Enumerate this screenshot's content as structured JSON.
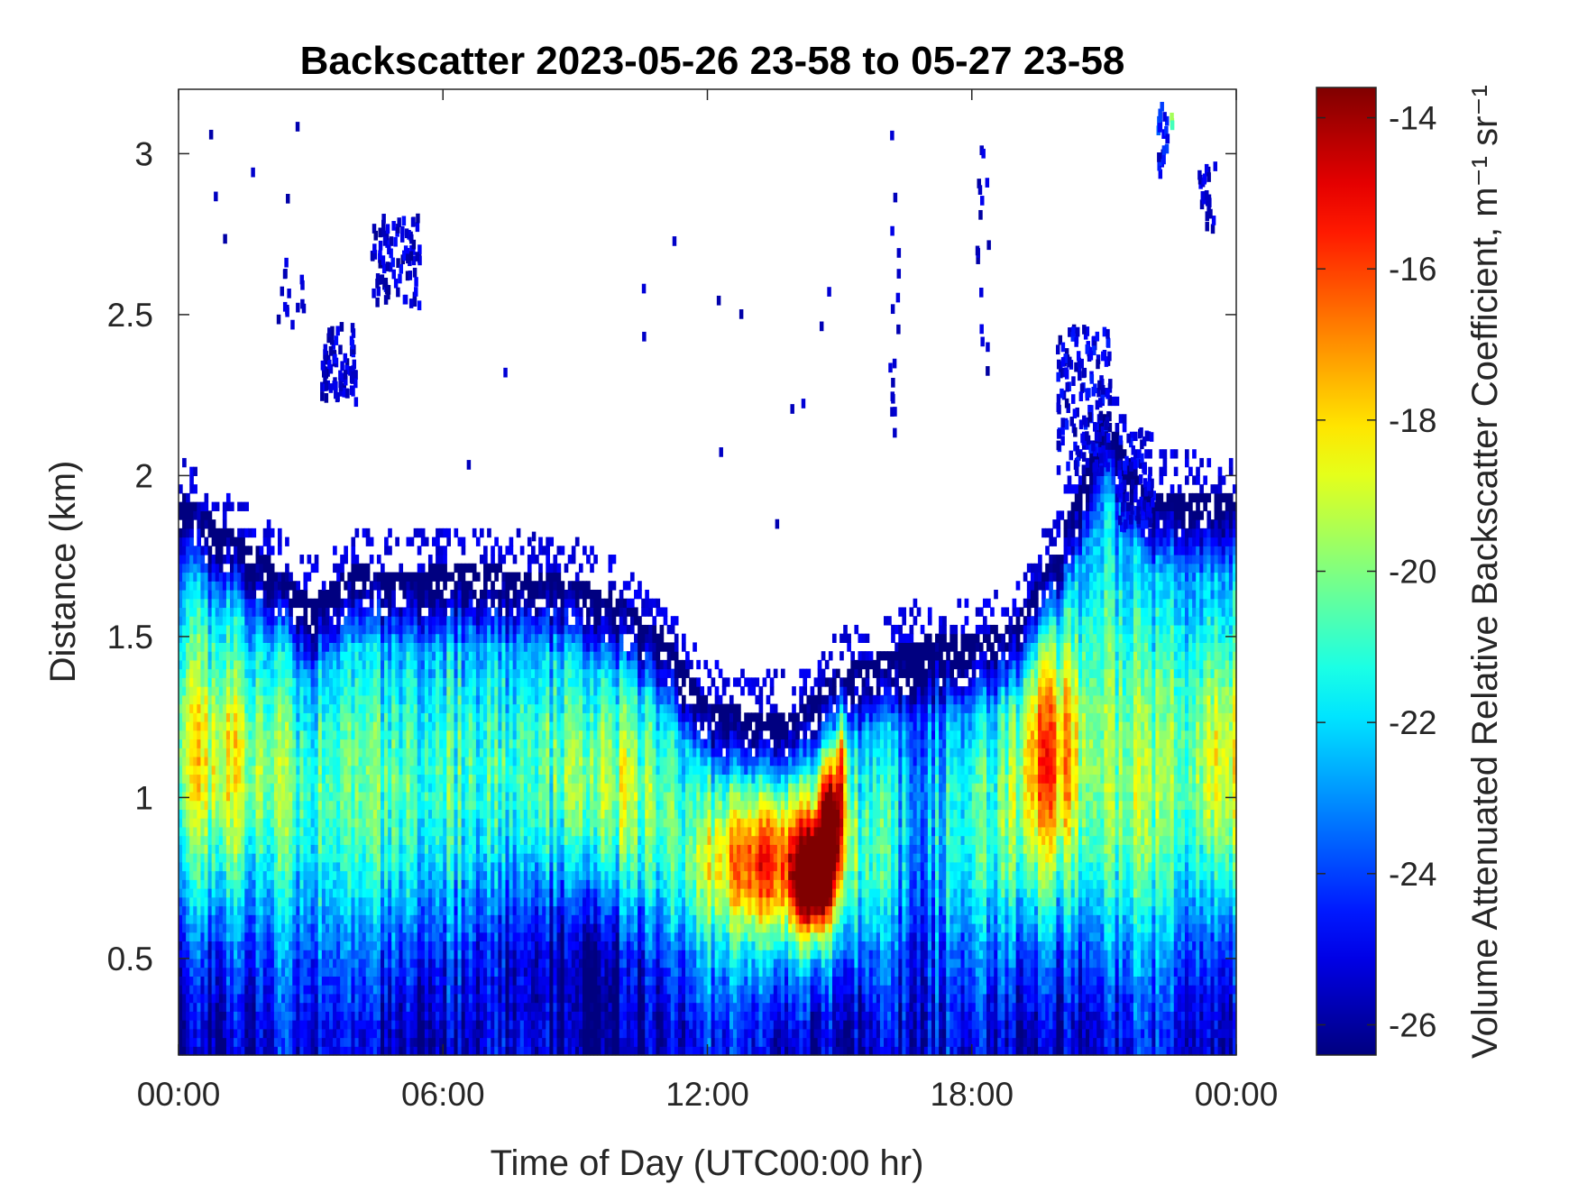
{
  "chart_data": {
    "type": "heatmap",
    "title": "Backscatter 2023-05-26 23-58 to 05-27 23-58",
    "xlabel": "Time of Day (UTC00:00 hr)",
    "ylabel": "Distance (km)",
    "colorbar_label": "Volume Attenuated Relative Backscatter Coefficient, m⁻¹ sr⁻¹",
    "xlim_hours": [
      0,
      24
    ],
    "ylim_km": [
      0.2,
      3.2
    ],
    "clim": [
      -26.4,
      -13.6
    ],
    "colormap": "jet",
    "x_ticks": [
      {
        "value": 0,
        "label": "00:00"
      },
      {
        "value": 6,
        "label": "06:00"
      },
      {
        "value": 12,
        "label": "12:00"
      },
      {
        "value": 18,
        "label": "18:00"
      },
      {
        "value": 24,
        "label": "00:00"
      }
    ],
    "y_ticks": [
      {
        "value": 0.5,
        "label": "0.5"
      },
      {
        "value": 1,
        "label": "1"
      },
      {
        "value": 1.5,
        "label": "1.5"
      },
      {
        "value": 2,
        "label": "2"
      },
      {
        "value": 2.5,
        "label": "2.5"
      },
      {
        "value": 3,
        "label": "3"
      }
    ],
    "colorbar_ticks": [
      {
        "value": -14,
        "label": "-14"
      },
      {
        "value": -16,
        "label": "-16"
      },
      {
        "value": -18,
        "label": "-18"
      },
      {
        "value": -20,
        "label": "-20"
      },
      {
        "value": -22,
        "label": "-22"
      },
      {
        "value": -24,
        "label": "-24"
      },
      {
        "value": -26,
        "label": "-26"
      }
    ],
    "data_top_height_km": {
      "hours": [
        0,
        1,
        2,
        3,
        4,
        5,
        6,
        7,
        8,
        9,
        10,
        11,
        12,
        13,
        14,
        15,
        16,
        17,
        18,
        19,
        20,
        21,
        22,
        23,
        24
      ],
      "values": [
        1.95,
        1.85,
        1.75,
        1.62,
        1.72,
        1.7,
        1.72,
        1.72,
        1.7,
        1.68,
        1.62,
        1.52,
        1.3,
        1.27,
        1.27,
        1.4,
        1.45,
        1.5,
        1.5,
        1.55,
        1.8,
        2.2,
        1.95,
        1.95,
        1.95
      ]
    },
    "key_features": [
      {
        "hour": 13.5,
        "height_km": 0.8,
        "value": -17
      },
      {
        "hour": 14.4,
        "height_km": 0.72,
        "value": -13.8
      },
      {
        "hour": 14.8,
        "height_km": 0.9,
        "value": -14.5
      },
      {
        "hour": 19.8,
        "height_km": 1.1,
        "value": -18.5
      },
      {
        "hour": 0.6,
        "height_km": 1.15,
        "value": -18.5
      },
      {
        "hour": 4.8,
        "height_km": 2.7,
        "value": -24.5
      },
      {
        "hour": 3.6,
        "height_km": 2.35,
        "value": -25
      },
      {
        "hour": 22.5,
        "height_km": 3.1,
        "value": -22
      },
      {
        "hour": 20.5,
        "height_km": 2.2,
        "value": -25
      }
    ]
  }
}
